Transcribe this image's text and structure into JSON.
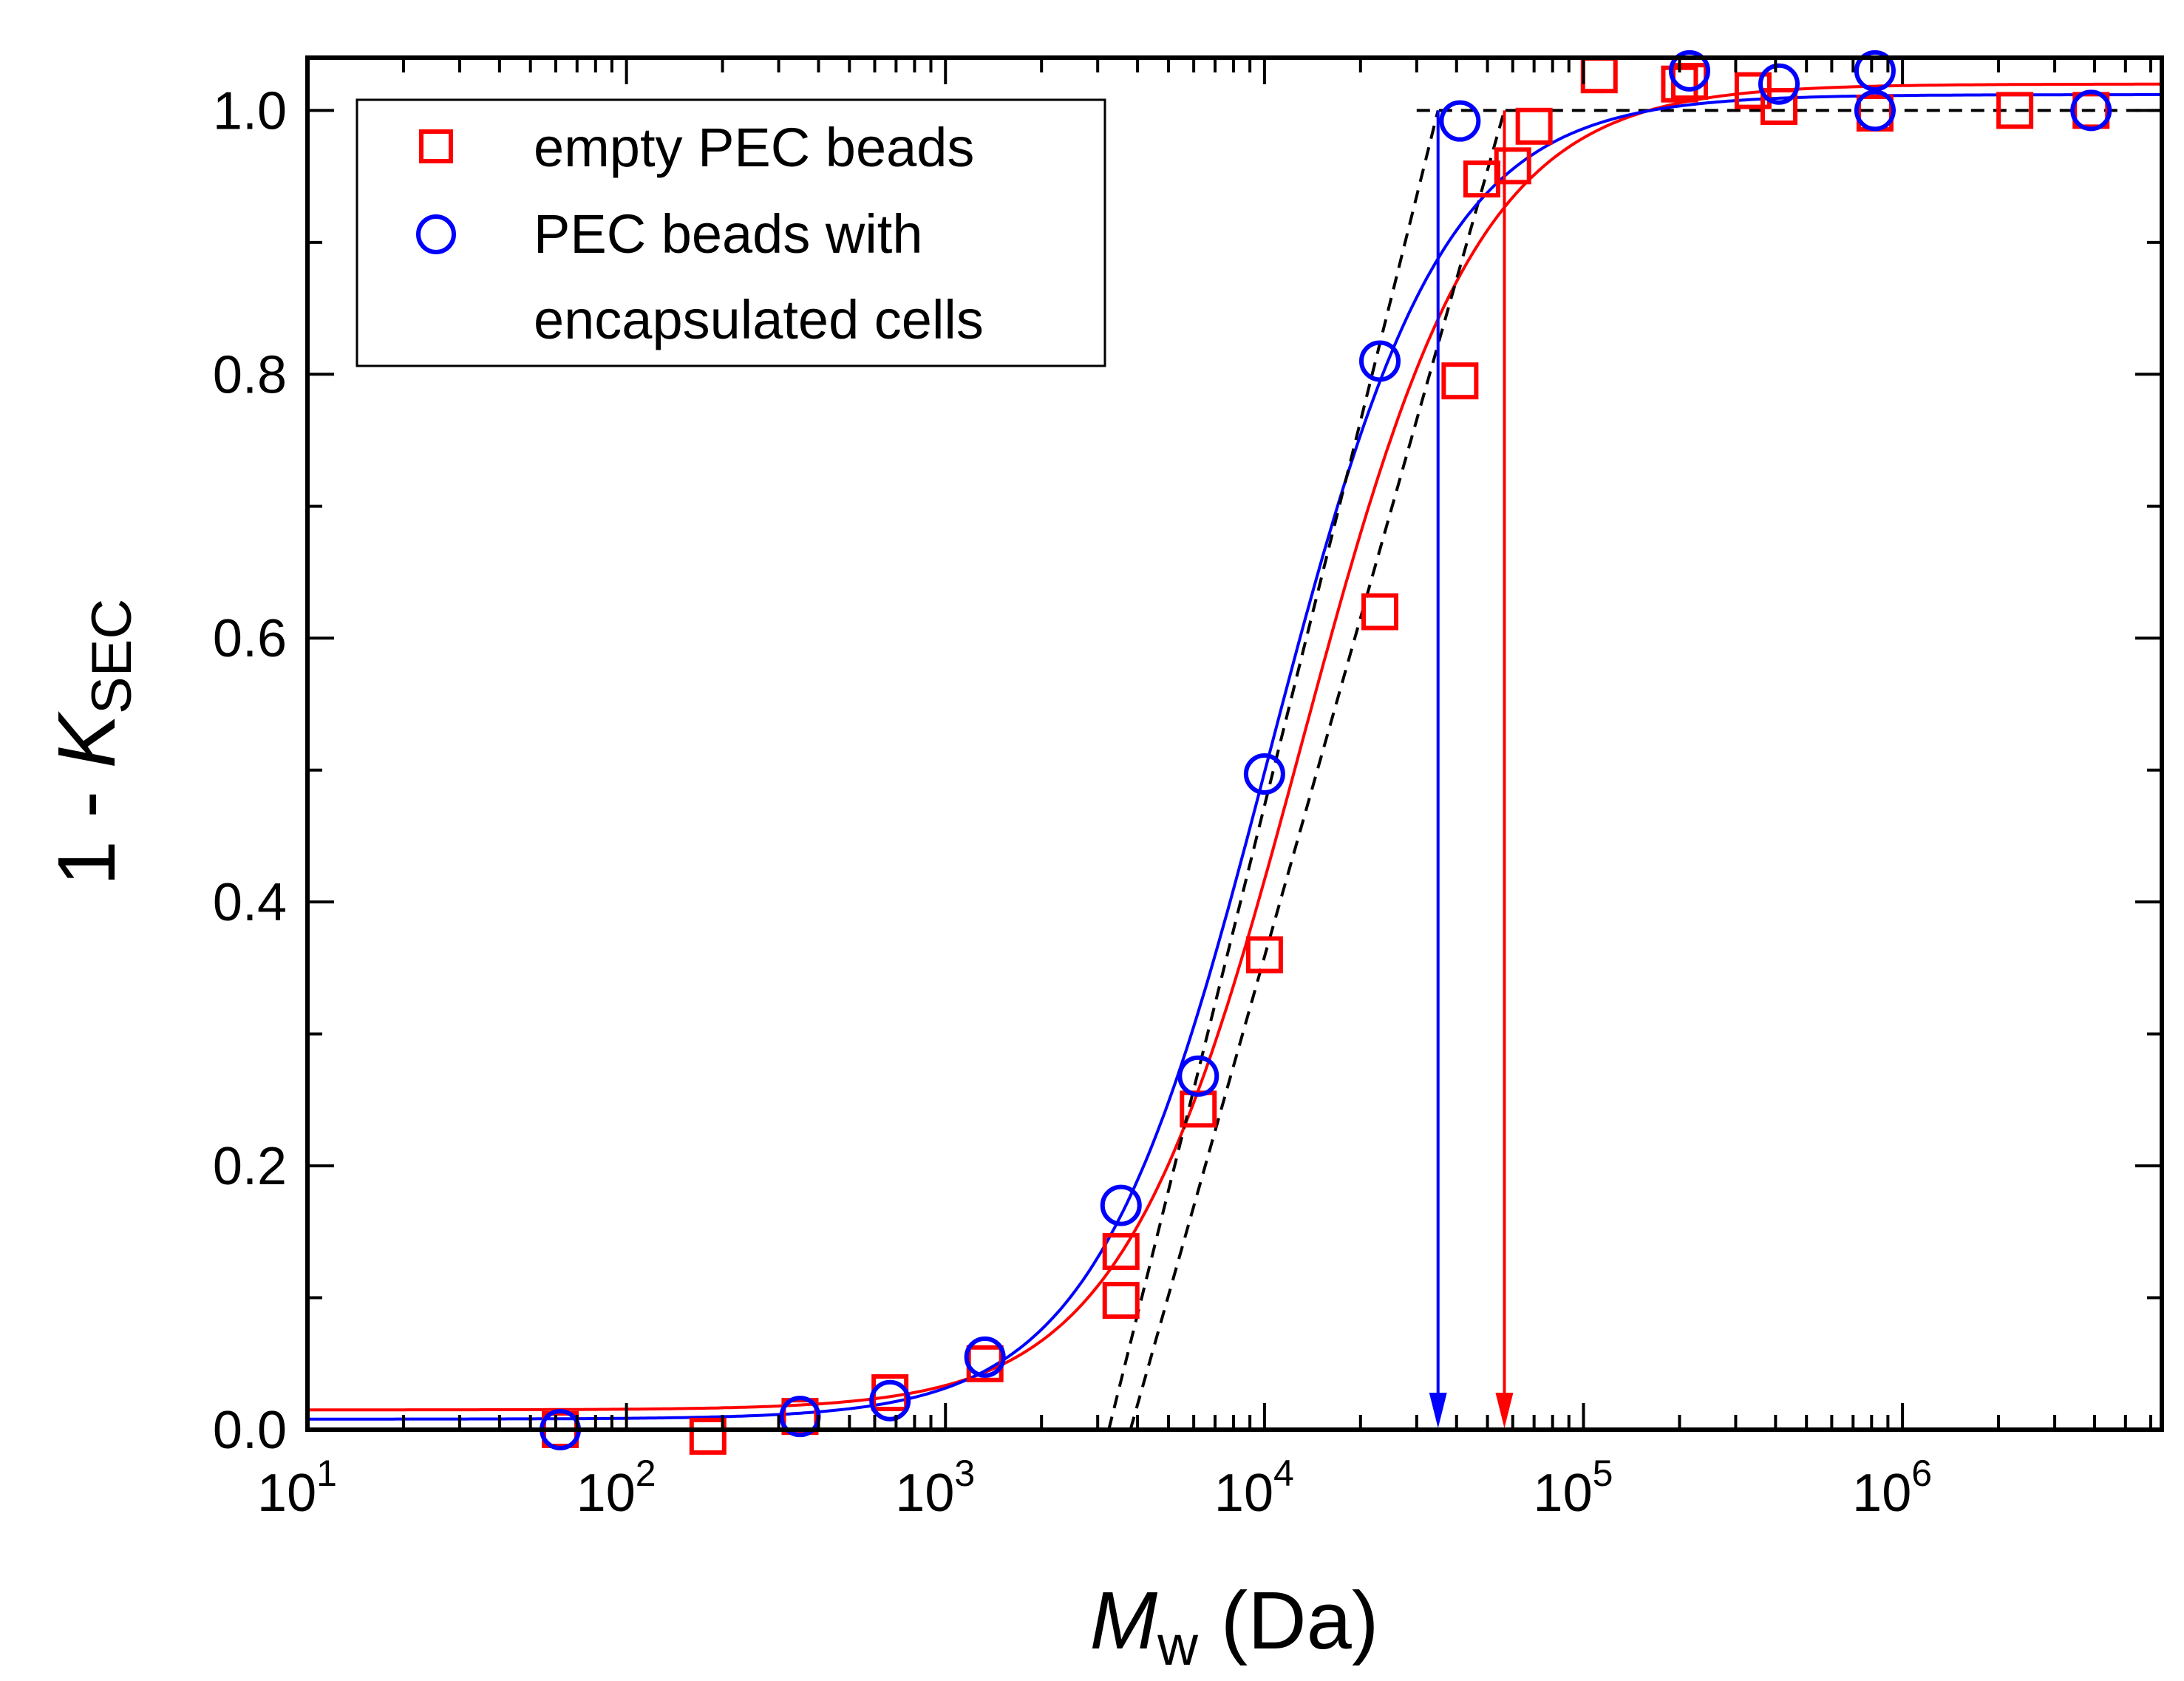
{
  "chart_data": {
    "type": "scatter",
    "xscale": "log",
    "xlim": [
      10,
      6500000
    ],
    "ylim": [
      0.0,
      1.04
    ],
    "xlabel": {
      "main": "M",
      "sub": "w",
      "unit": " (Da)"
    },
    "ylabel": {
      "prefix": "1 - ",
      "main": "K",
      "sub": "SEC"
    },
    "x_tick_labels": [
      {
        "value": 10,
        "base": "10",
        "exp": "1"
      },
      {
        "value": 100,
        "base": "10",
        "exp": "2"
      },
      {
        "value": 1000,
        "base": "10",
        "exp": "3"
      },
      {
        "value": 10000,
        "base": "10",
        "exp": "4"
      },
      {
        "value": 100000,
        "base": "10",
        "exp": "5"
      },
      {
        "value": 1000000,
        "base": "10",
        "exp": "6"
      }
    ],
    "y_tick_labels": [
      {
        "value": 0.0,
        "label": "0.0"
      },
      {
        "value": 0.2,
        "label": "0.2"
      },
      {
        "value": 0.4,
        "label": "0.4"
      },
      {
        "value": 0.6,
        "label": "0.6"
      },
      {
        "value": 0.8,
        "label": "0.8"
      },
      {
        "value": 1.0,
        "label": "1.0"
      }
    ],
    "y_minor_ticks": [
      0.1,
      0.3,
      0.5,
      0.7,
      0.9
    ],
    "legend": {
      "position": "top-left",
      "entries": [
        {
          "series": 0,
          "lines": [
            "empty PEC beads"
          ]
        },
        {
          "series": 1,
          "lines": [
            "PEC beads with",
            "encapsulated cells"
          ]
        }
      ]
    },
    "series": [
      {
        "name": "empty PEC beads",
        "marker": "square",
        "color": "#ff0000",
        "points": [
          {
            "x": 62,
            "y": 0.0
          },
          {
            "x": 180,
            "y": -0.005
          },
          {
            "x": 350,
            "y": 0.01
          },
          {
            "x": 670,
            "y": 0.028
          },
          {
            "x": 1330,
            "y": 0.05
          },
          {
            "x": 3550,
            "y": 0.135
          },
          {
            "x": 3550,
            "y": 0.098
          },
          {
            "x": 6200,
            "y": 0.243
          },
          {
            "x": 10000,
            "y": 0.36
          },
          {
            "x": 23000,
            "y": 0.62
          },
          {
            "x": 41000,
            "y": 0.795
          },
          {
            "x": 48000,
            "y": 0.948
          },
          {
            "x": 60000,
            "y": 0.958
          },
          {
            "x": 70000,
            "y": 0.988
          },
          {
            "x": 112000,
            "y": 1.027
          },
          {
            "x": 200000,
            "y": 1.02
          },
          {
            "x": 215000,
            "y": 1.022
          },
          {
            "x": 340000,
            "y": 1.015
          },
          {
            "x": 410000,
            "y": 1.003
          },
          {
            "x": 820000,
            "y": 0.998
          },
          {
            "x": 2250000,
            "y": 1.0
          },
          {
            "x": 3900000,
            "y": 1.0
          }
        ],
        "fit": {
          "base": 0.015,
          "top": 1.02,
          "x0": 13000,
          "p": 1.55
        },
        "tangent": {
          "points": [
            [
              3800,
              0.0
            ],
            [
              56500,
              1.0
            ]
          ]
        },
        "arrow": {
          "x": 56500,
          "y_from": 1.0,
          "y_to": 0.0
        }
      },
      {
        "name": "PEC beads with encapsulated cells",
        "marker": "circle",
        "color": "#0000ff",
        "points": [
          {
            "x": 62,
            "y": 0.0
          },
          {
            "x": 350,
            "y": 0.01
          },
          {
            "x": 670,
            "y": 0.022
          },
          {
            "x": 1330,
            "y": 0.055
          },
          {
            "x": 3550,
            "y": 0.17
          },
          {
            "x": 6200,
            "y": 0.268
          },
          {
            "x": 10000,
            "y": 0.497
          },
          {
            "x": 23000,
            "y": 0.81
          },
          {
            "x": 41000,
            "y": 0.992
          },
          {
            "x": 215000,
            "y": 1.03
          },
          {
            "x": 410000,
            "y": 1.02
          },
          {
            "x": 820000,
            "y": 1.0
          },
          {
            "x": 820000,
            "y": 1.03
          },
          {
            "x": 3900000,
            "y": 1.0
          }
        ],
        "fit": {
          "base": 0.008,
          "top": 1.012,
          "x0": 10300,
          "p": 1.6
        },
        "tangent": {
          "points": [
            [
              3250,
              0.0
            ],
            [
              35000,
              1.0
            ]
          ]
        },
        "arrow": {
          "x": 35000,
          "y_from": 1.0,
          "y_to": 0.0
        }
      }
    ],
    "reference_line": {
      "y": 1.0,
      "x_from": 30000,
      "x_to": 6500000,
      "style": "dashed",
      "color": "#000000"
    }
  }
}
